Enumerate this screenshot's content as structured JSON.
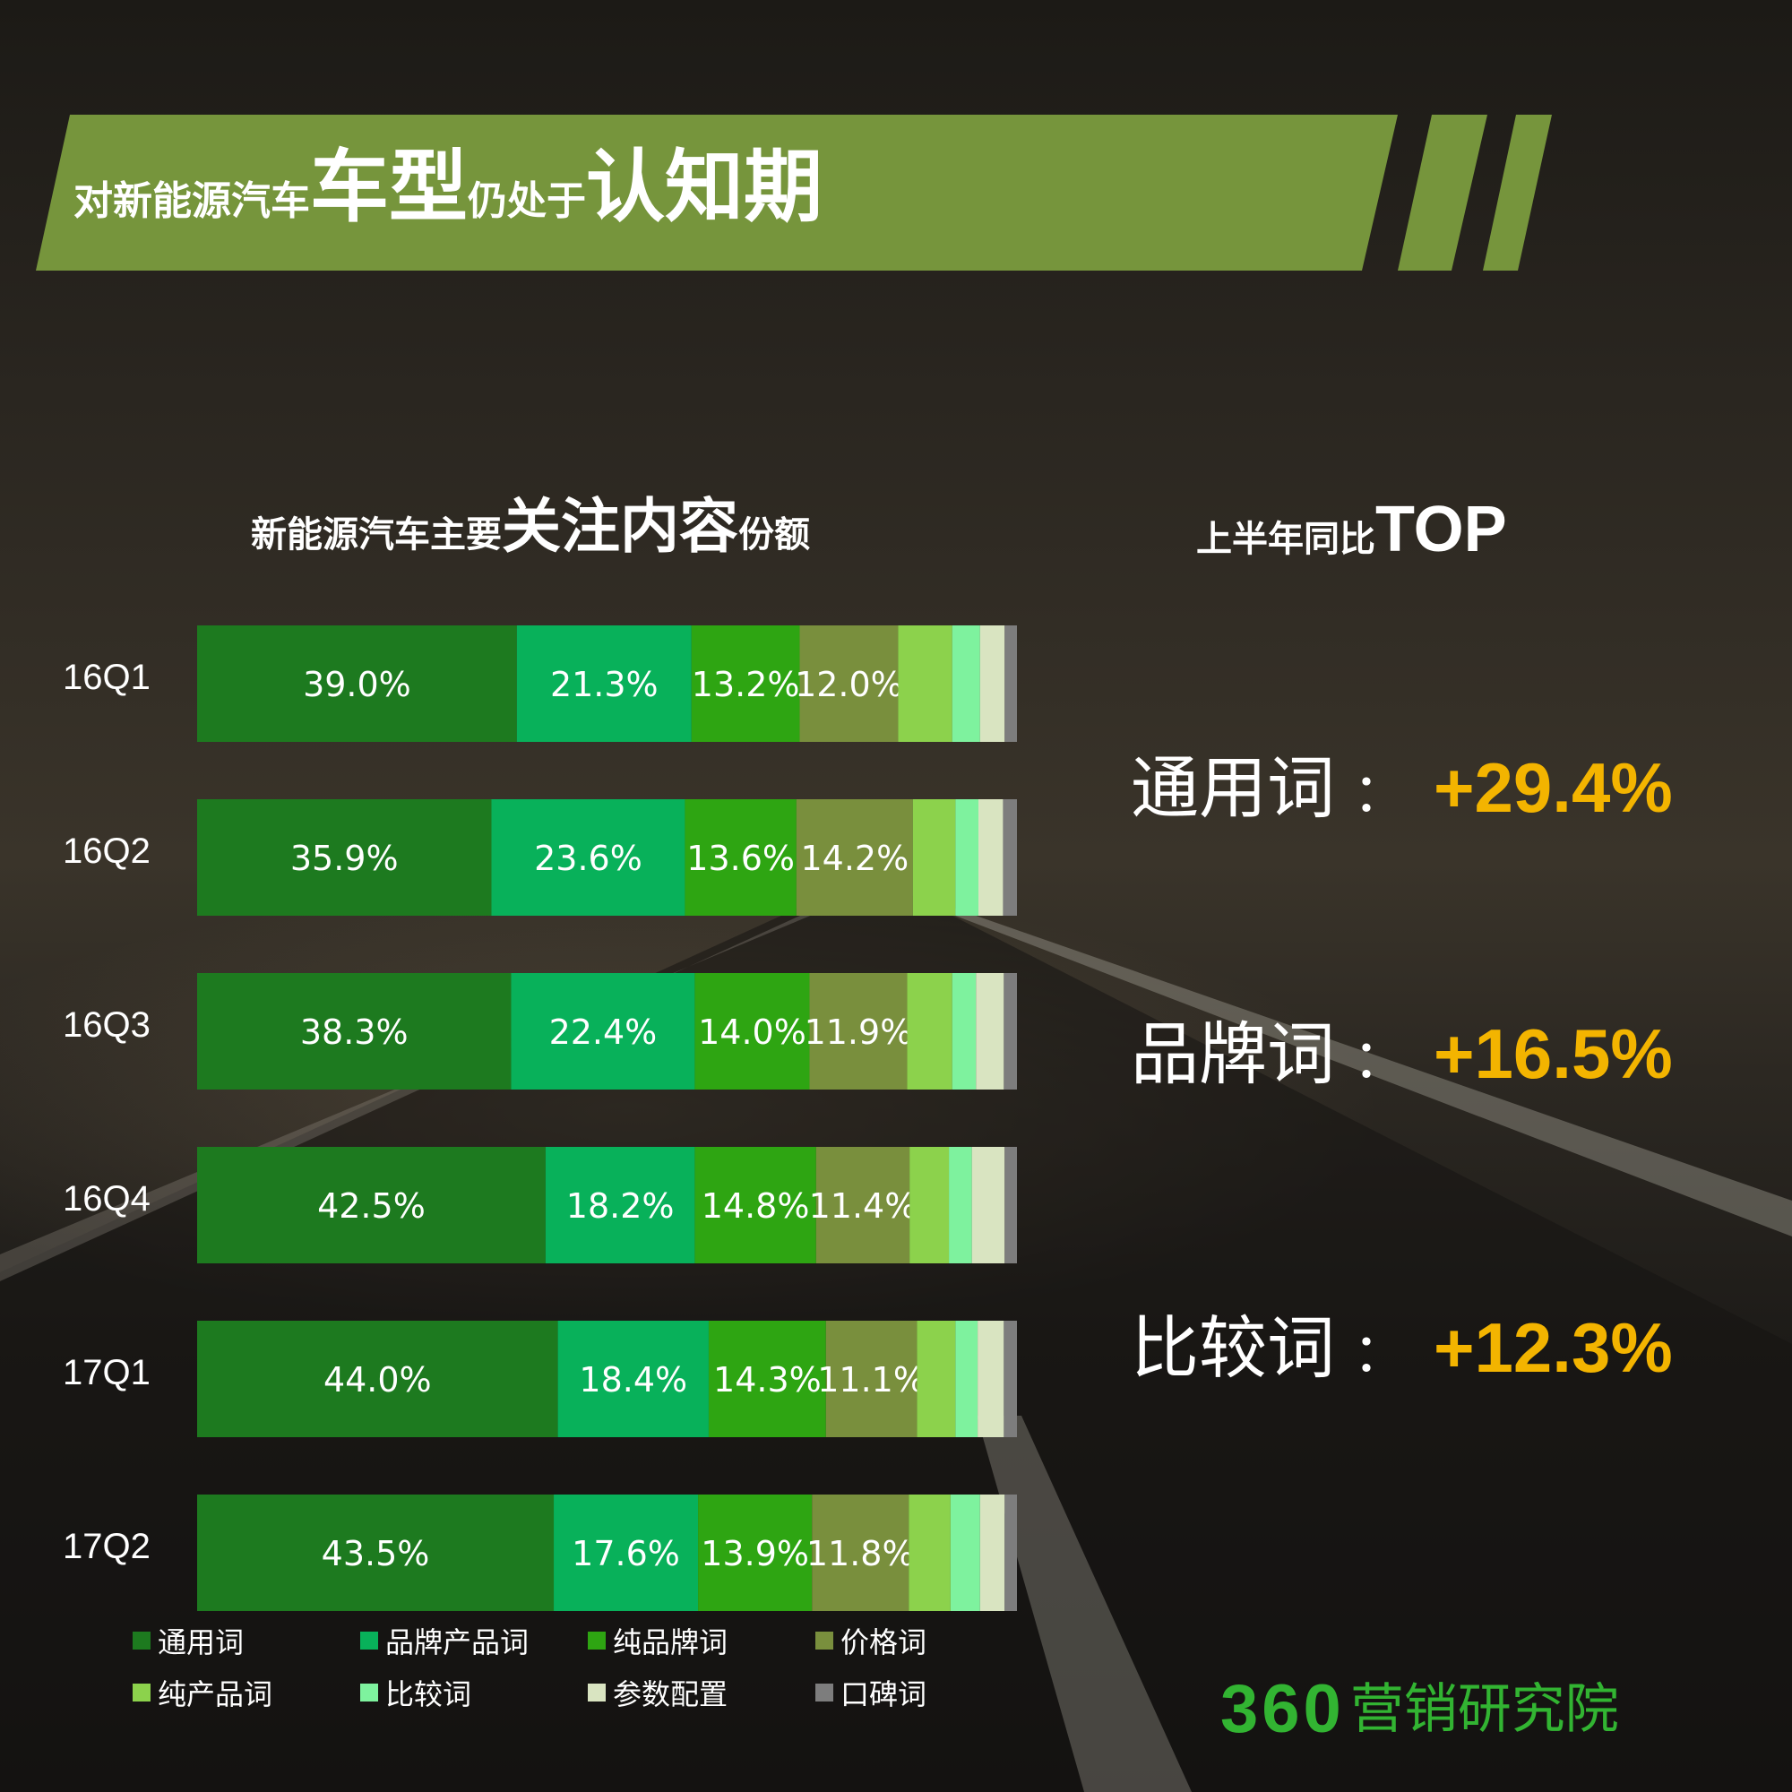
{
  "page_title": {
    "part1": "对新能源汽车",
    "part2": "车型",
    "part3": "仍处于",
    "part4": "认知期"
  },
  "chart_heading": {
    "part1": "新能源汽车主要",
    "part2": "关注内容",
    "part3": "份额"
  },
  "top_heading": {
    "part1": "上半年同比",
    "part2": "TOP"
  },
  "top_list": [
    {
      "name": "通用词",
      "colon": "：",
      "value": "+29.4%"
    },
    {
      "name": "品牌词",
      "colon": "：",
      "value": "+16.5%"
    },
    {
      "name": "比较词",
      "colon": "：",
      "value": "+12.3%"
    }
  ],
  "colors": {
    "banner": "#76953c",
    "accent_value": "#f3b400",
    "brand": "#32b432"
  },
  "chart_data": {
    "type": "bar",
    "orientation": "horizontal",
    "stacked": true,
    "title": "新能源汽车主要关注内容份额",
    "categories": [
      "16Q1",
      "16Q2",
      "16Q3",
      "16Q4",
      "17Q1",
      "17Q2"
    ],
    "series": [
      {
        "name": "通用词",
        "color": "#1d7a1f",
        "values": [
          39.0,
          35.9,
          38.3,
          42.5,
          44.0,
          43.5
        ],
        "labels": [
          "39.0%",
          "35.9%",
          "38.3%",
          "42.5%",
          "44.0%",
          "43.5%"
        ]
      },
      {
        "name": "品牌产品词",
        "color": "#08b15a",
        "values": [
          21.3,
          23.6,
          22.4,
          18.2,
          18.4,
          17.6
        ],
        "labels": [
          "21.3%",
          "23.6%",
          "22.4%",
          "18.2%",
          "18.4%",
          "17.6%"
        ]
      },
      {
        "name": "纯品牌词",
        "color": "#2ea512",
        "values": [
          13.2,
          13.6,
          14.0,
          14.8,
          14.3,
          13.9
        ],
        "labels": [
          "13.2%",
          "13.6%",
          "14.0%",
          "14.8%",
          "14.3%",
          "13.9%"
        ]
      },
      {
        "name": "价格词",
        "color": "#798f3d",
        "values": [
          12.0,
          14.2,
          11.9,
          11.4,
          11.1,
          11.8
        ],
        "labels": [
          "12.0%",
          "14.2%",
          "11.9%",
          "11.4%",
          "11.1%",
          "11.8%"
        ]
      },
      {
        "name": "纯产品词",
        "color": "#8cd24c",
        "values": [
          6.6,
          5.2,
          5.5,
          4.8,
          4.7,
          5.1
        ]
      },
      {
        "name": "比较词",
        "color": "#7ef29e",
        "values": [
          3.4,
          2.8,
          2.9,
          2.8,
          2.7,
          3.6
        ]
      },
      {
        "name": "参数配置",
        "color": "#d9e4c1",
        "values": [
          3.0,
          3.0,
          3.4,
          4.0,
          3.2,
          3.0
        ]
      },
      {
        "name": "口碑词",
        "color": "#7d7d7d",
        "values": [
          1.5,
          1.7,
          1.6,
          1.5,
          1.6,
          1.5
        ]
      }
    ],
    "xlim": [
      0,
      100
    ],
    "legend_position": "bottom"
  },
  "brand": {
    "number": "360",
    "text": "营销研究院"
  }
}
